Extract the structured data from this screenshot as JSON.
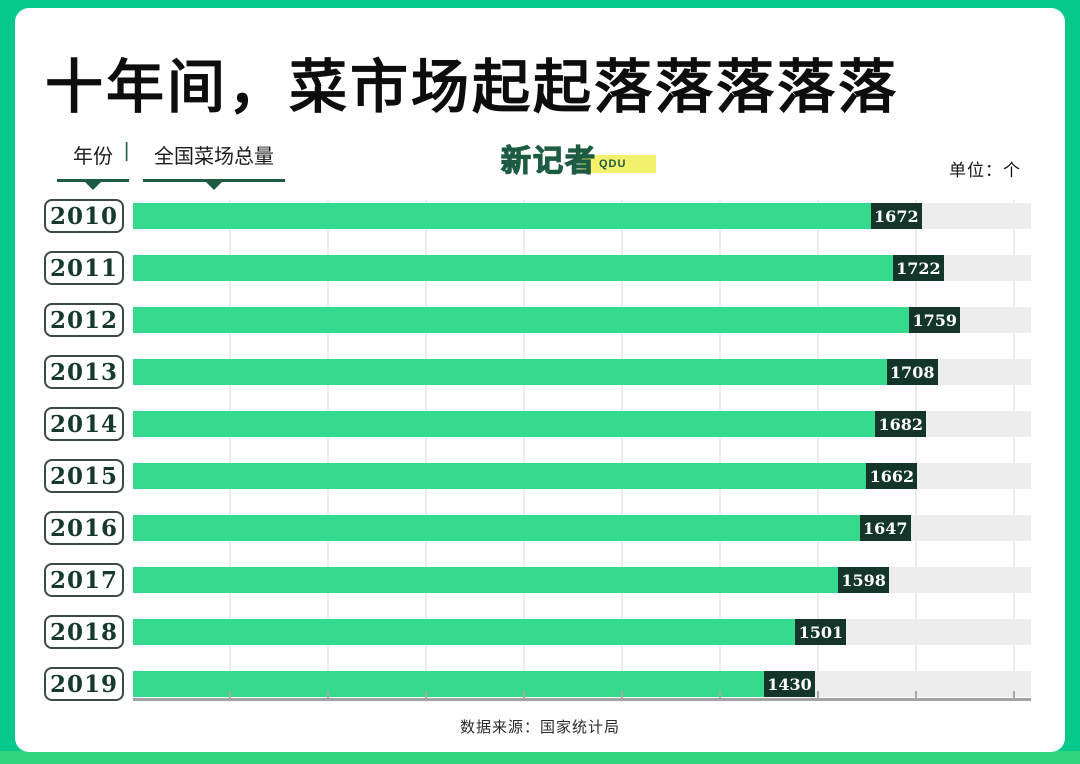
{
  "page": {
    "title": "十年间，菜市场起起落落落落落",
    "unit_label": "单位：个",
    "source_label": "数据来源：国家统计局"
  },
  "legend": {
    "year_label": "年份",
    "separator": "|",
    "series_label": "全国菜场总量"
  },
  "logo": {
    "name": "新记者",
    "sub": "QDU"
  },
  "colors": {
    "frame_green": "#07c98c",
    "frame_bottom_green": "#2fd67f",
    "bar_green": "#35da8c",
    "value_box_dark_green": "#14352a",
    "track_gray": "#ededed",
    "accent_dark_green": "#1d5b42",
    "highlight_yellow": "#f3f06c"
  },
  "chart_data": {
    "type": "bar",
    "orientation": "horizontal",
    "title": "十年间，菜市场起起落落落落落",
    "series_name": "全国菜场总量",
    "categories_label": "年份",
    "unit": "个",
    "source": "国家统计局",
    "categories": [
      "2010",
      "2011",
      "2012",
      "2013",
      "2014",
      "2015",
      "2016",
      "2017",
      "2018",
      "2019"
    ],
    "values": [
      1672,
      1722,
      1759,
      1708,
      1682,
      1662,
      1647,
      1598,
      1501,
      1430
    ],
    "xlim": [
      0,
      2035
    ],
    "grid": true,
    "legend_position": "top-left"
  }
}
